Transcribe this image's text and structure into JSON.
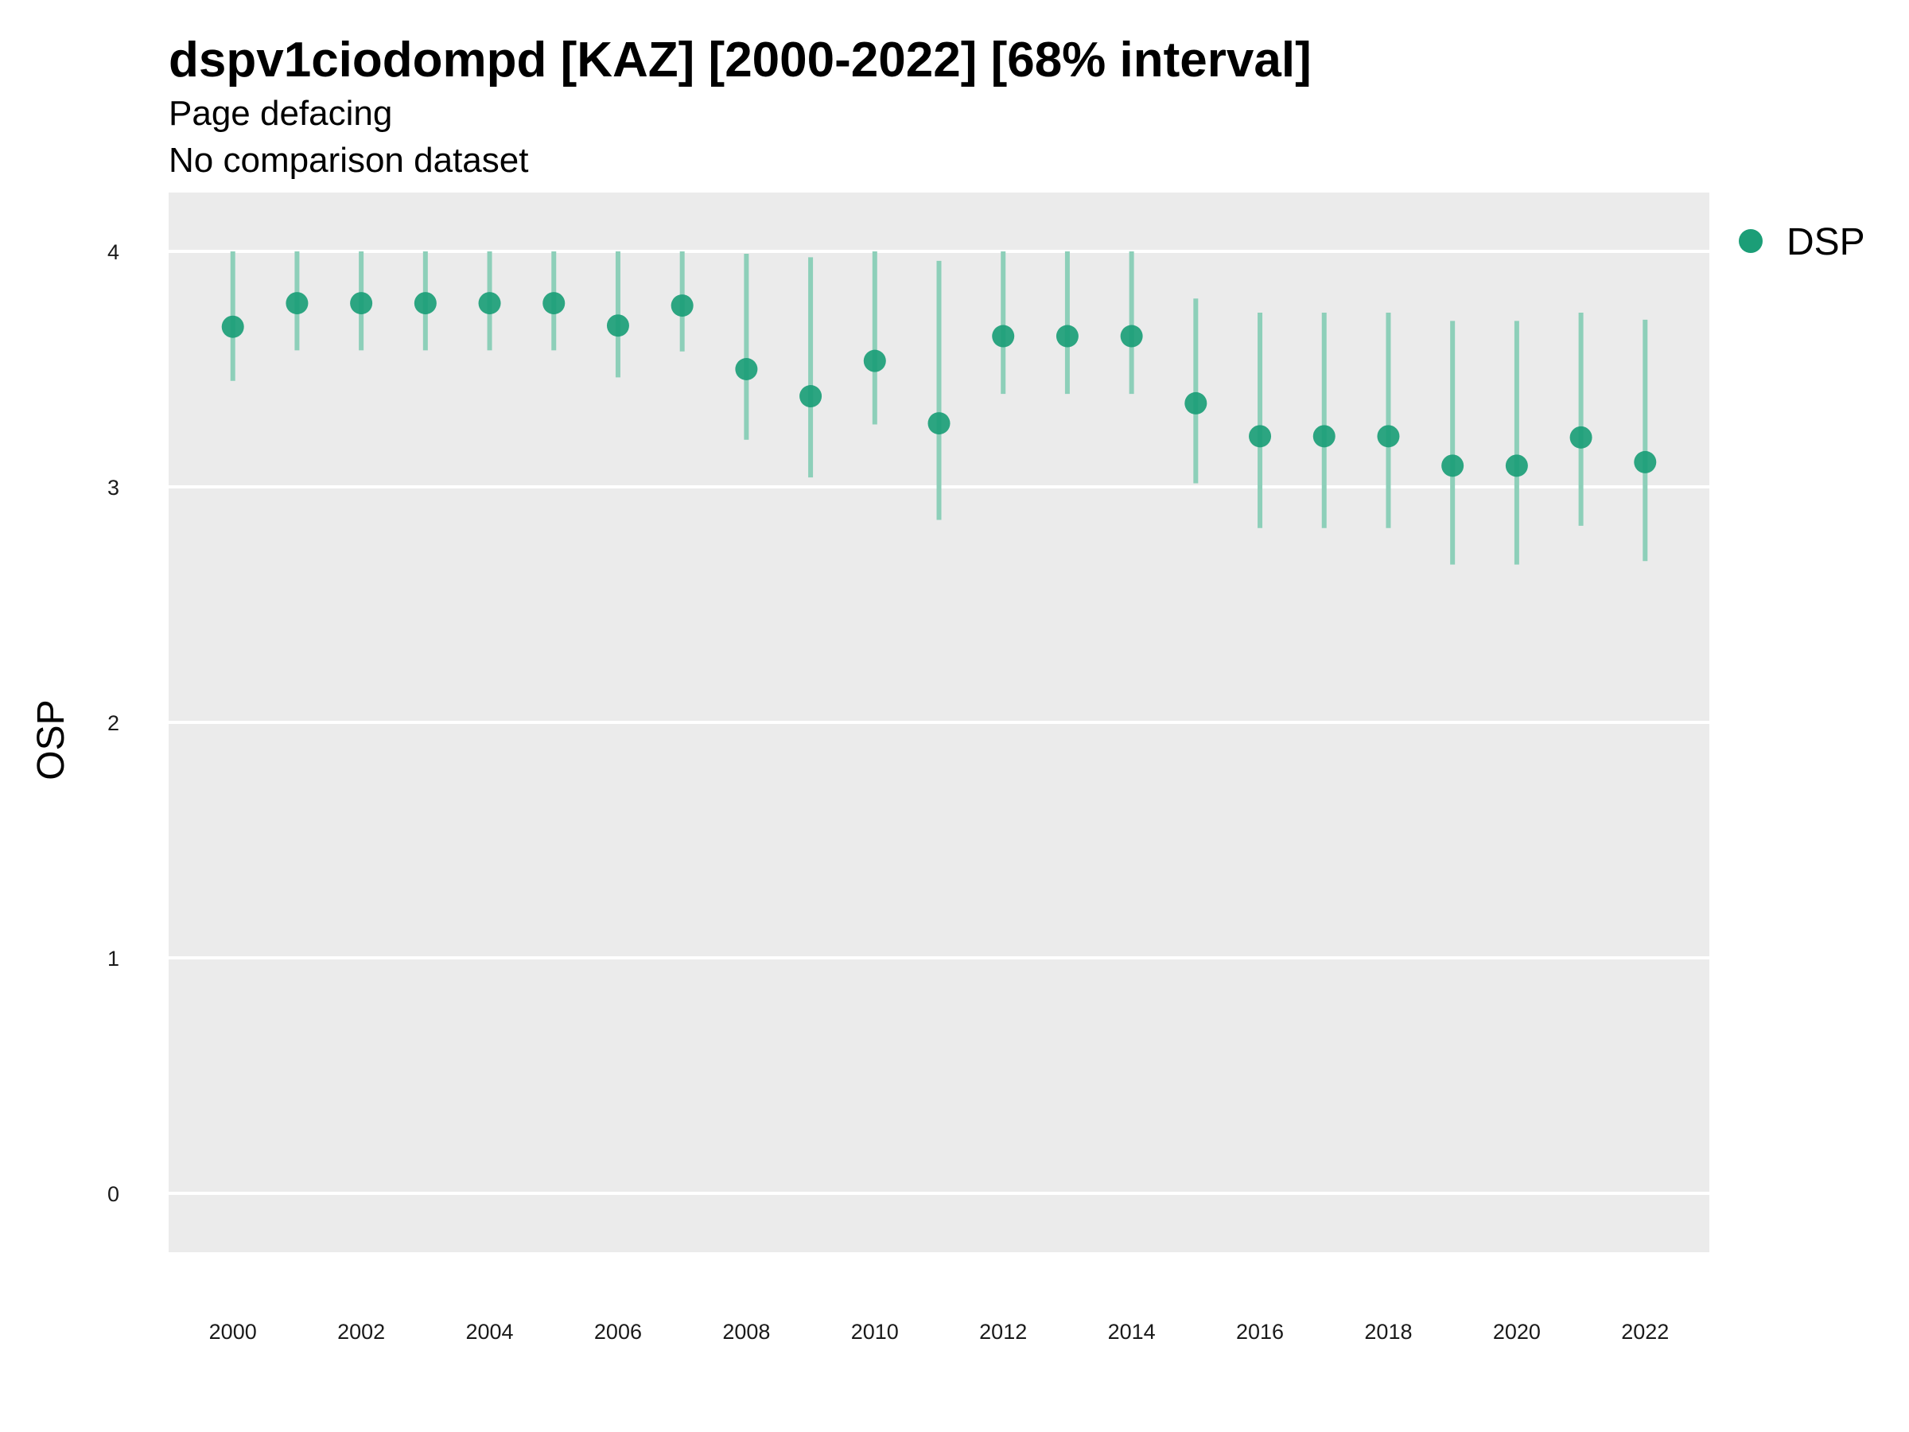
{
  "chart_data": {
    "type": "scatter",
    "title": "dspv1ciodompd [KAZ] [2000-2022] [68% interval]",
    "subtitle_lines": [
      "Page defacing",
      "No comparison dataset"
    ],
    "xlabel": "",
    "ylabel": "OSP",
    "ylim": [
      -0.25,
      4.25
    ],
    "xlim": [
      1999,
      2023
    ],
    "y_ticks": [
      0,
      1,
      2,
      3,
      4
    ],
    "x_ticks": [
      2000,
      2002,
      2004,
      2006,
      2008,
      2010,
      2012,
      2014,
      2016,
      2018,
      2020,
      2022
    ],
    "grid": "horizontal major lines only",
    "legend_position": "right",
    "colors": {
      "point": "#1b9e77",
      "interval": "#8dcfb9",
      "panel": "#ebebeb",
      "grid": "#ffffff"
    },
    "series": [
      {
        "name": "DSP",
        "x": [
          2000,
          2001,
          2002,
          2003,
          2004,
          2005,
          2006,
          2007,
          2008,
          2009,
          2010,
          2011,
          2012,
          2013,
          2014,
          2015,
          2016,
          2017,
          2018,
          2019,
          2020,
          2021,
          2022
        ],
        "y": [
          3.68,
          3.78,
          3.78,
          3.78,
          3.78,
          3.78,
          3.685,
          3.77,
          3.5,
          3.385,
          3.535,
          3.27,
          3.64,
          3.64,
          3.64,
          3.355,
          3.215,
          3.215,
          3.215,
          3.09,
          3.09,
          3.21,
          3.105
        ],
        "lower": [
          3.45,
          3.58,
          3.58,
          3.58,
          3.58,
          3.58,
          3.465,
          3.575,
          3.2,
          3.04,
          3.265,
          2.86,
          3.395,
          3.395,
          3.395,
          3.015,
          2.825,
          2.825,
          2.825,
          2.67,
          2.67,
          2.835,
          2.685
        ],
        "upper": [
          4.0,
          4.0,
          4.0,
          4.0,
          4.0,
          4.0,
          4.0,
          4.0,
          3.99,
          3.975,
          4.0,
          3.96,
          4.0,
          4.0,
          4.0,
          3.8,
          3.74,
          3.74,
          3.74,
          3.705,
          3.705,
          3.74,
          3.71
        ]
      }
    ]
  }
}
